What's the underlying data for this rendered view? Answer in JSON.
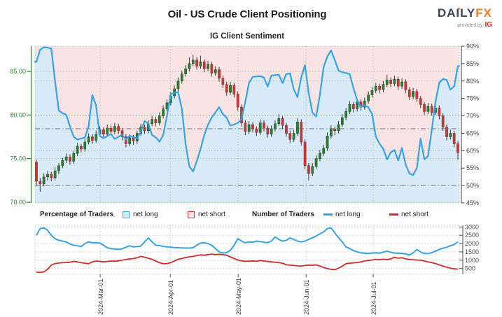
{
  "header": {
    "title": "Oil - US Crude Client Positioning",
    "subtitle": "IG Client Sentiment",
    "logo": {
      "brand_primary": "DAILY",
      "brand_accent": "FX",
      "tagline": "provided by",
      "provider": "IG"
    }
  },
  "legend": {
    "pct_title": "Percentage of Traders",
    "pct_net_long": "net long",
    "pct_net_short": "net short",
    "count_title": "Number of Traders",
    "count_net_long": "net long",
    "count_net_short": "net short"
  },
  "colors": {
    "candle_up": "#2f7d33",
    "candle_up_edge": "#1d4d20",
    "candle_down": "#c13b3b",
    "candle_down_edge": "#8e2626",
    "wick": "#3a3a3a",
    "sentiment_line": "#35a3e6",
    "area_above_line": "#f9e3e3",
    "area_below_line": "#d9eaf8",
    "grid_green": "#a8cda8",
    "grid_gray": "#c2cac2",
    "dash_dot": "#8c8c8c",
    "axis_green": "#2e7d32",
    "axis_dark": "#3c3c3c",
    "count_axis": "#4a4a4a",
    "net_long_count": "#35a3e6",
    "net_short_count": "#cf2b2b"
  },
  "chart_data": [
    {
      "type": "candlestick",
      "title": "IG Client Sentiment",
      "legend_position": "below",
      "grid": true,
      "price_axis": {
        "side": "left",
        "tick_labels": [
          "85.00",
          "80.00",
          "75.00",
          "70.00"
        ],
        "ticks": [
          85,
          80,
          75,
          70
        ],
        "range": [
          69.9,
          87.9
        ]
      },
      "pct_axis": {
        "side": "right",
        "tick_labels": [
          "90%",
          "85%",
          "80%",
          "75%",
          "70%",
          "65%",
          "60%",
          "55%",
          "50%",
          "45%"
        ],
        "ticks": [
          90,
          85,
          80,
          75,
          70,
          65,
          60,
          55,
          50,
          45
        ],
        "range": [
          45,
          90
        ]
      },
      "x_axis": {
        "tick_labels": [
          "2024-Mar-01",
          "2024-Apr-01",
          "2024-May-01",
          "2024-Jun-01",
          "2024-Jul-01"
        ],
        "tick_positions": [
          17.1,
          35.9,
          54.1,
          72.3,
          90.3
        ]
      },
      "reference_lines_pct": [
        66.3,
        50
      ],
      "gridlines_price": [
        85,
        80,
        75,
        70
      ],
      "gridlines_pct": [
        80,
        70,
        60
      ],
      "candles_ohlc": [
        [
          74.6,
          74.9,
          71.9,
          72.4
        ],
        [
          72.4,
          72.8,
          71.2,
          72.1
        ],
        [
          72.1,
          73.3,
          71.8,
          72.9
        ],
        [
          72.9,
          73.6,
          72.5,
          73.2
        ],
        [
          73.2,
          73.5,
          72.4,
          72.8
        ],
        [
          72.8,
          74.0,
          72.5,
          73.6
        ],
        [
          73.6,
          74.5,
          73.2,
          74.2
        ],
        [
          74.2,
          75.1,
          73.9,
          74.8
        ],
        [
          74.8,
          75.6,
          74.5,
          75.2
        ],
        [
          75.2,
          75.5,
          74.3,
          74.7
        ],
        [
          74.7,
          75.9,
          74.4,
          75.6
        ],
        [
          75.6,
          76.8,
          75.3,
          76.4
        ],
        [
          76.4,
          76.7,
          75.7,
          76.1
        ],
        [
          76.1,
          77.3,
          75.8,
          76.9
        ],
        [
          76.9,
          77.9,
          76.6,
          77.5
        ],
        [
          77.5,
          77.8,
          76.7,
          77.1
        ],
        [
          77.1,
          78.2,
          76.8,
          77.8
        ],
        [
          77.8,
          78.7,
          77.5,
          78.3
        ],
        [
          78.3,
          78.6,
          77.4,
          77.8
        ],
        [
          77.8,
          78.9,
          77.5,
          78.5
        ],
        [
          78.5,
          78.8,
          77.7,
          78.1
        ],
        [
          78.1,
          79.1,
          77.8,
          78.7
        ],
        [
          78.7,
          79.0,
          77.8,
          78.2
        ],
        [
          78.2,
          78.5,
          77.1,
          77.5
        ],
        [
          77.5,
          77.8,
          76.3,
          76.7
        ],
        [
          76.7,
          77.8,
          76.4,
          77.4
        ],
        [
          77.4,
          77.7,
          76.6,
          77.0
        ],
        [
          77.0,
          78.2,
          76.7,
          77.9
        ],
        [
          77.9,
          79.0,
          77.6,
          78.6
        ],
        [
          78.6,
          78.9,
          77.8,
          78.2
        ],
        [
          78.2,
          79.4,
          77.9,
          79.0
        ],
        [
          79.0,
          79.9,
          78.7,
          79.5
        ],
        [
          79.5,
          79.8,
          78.7,
          79.1
        ],
        [
          79.1,
          80.3,
          78.8,
          79.9
        ],
        [
          79.9,
          81.1,
          79.6,
          80.7
        ],
        [
          80.7,
          81.8,
          80.4,
          81.4
        ],
        [
          81.4,
          82.6,
          81.1,
          82.2
        ],
        [
          82.2,
          83.4,
          81.9,
          83.0
        ],
        [
          83.0,
          84.3,
          82.7,
          83.9
        ],
        [
          83.9,
          85.1,
          83.6,
          84.7
        ],
        [
          84.7,
          85.7,
          84.4,
          85.3
        ],
        [
          85.3,
          86.6,
          85.0,
          85.9
        ],
        [
          85.9,
          86.9,
          85.6,
          86.3
        ],
        [
          86.3,
          86.6,
          85.2,
          85.6
        ],
        [
          85.6,
          86.8,
          85.3,
          86.1
        ],
        [
          86.1,
          86.4,
          84.9,
          85.3
        ],
        [
          85.3,
          86.2,
          85.0,
          85.8
        ],
        [
          85.8,
          86.1,
          84.4,
          84.8
        ],
        [
          84.8,
          85.6,
          84.5,
          85.2
        ],
        [
          85.2,
          85.5,
          83.8,
          84.2
        ],
        [
          84.2,
          84.5,
          83.1,
          83.5
        ],
        [
          83.5,
          83.8,
          82.2,
          82.6
        ],
        [
          82.6,
          83.8,
          82.3,
          83.4
        ],
        [
          83.4,
          83.7,
          82.0,
          82.4
        ],
        [
          82.4,
          82.7,
          80.5,
          80.9
        ],
        [
          80.9,
          81.2,
          78.7,
          79.1
        ],
        [
          79.1,
          79.4,
          77.7,
          78.1
        ],
        [
          78.1,
          79.3,
          77.8,
          78.9
        ],
        [
          78.9,
          79.2,
          78.0,
          78.4
        ],
        [
          78.4,
          78.7,
          77.6,
          78.0
        ],
        [
          78.0,
          79.5,
          77.7,
          79.1
        ],
        [
          79.1,
          79.4,
          78.1,
          78.5
        ],
        [
          78.5,
          78.8,
          77.4,
          77.8
        ],
        [
          77.8,
          78.8,
          77.5,
          78.4
        ],
        [
          78.4,
          79.4,
          78.1,
          79.0
        ],
        [
          79.0,
          80.1,
          78.7,
          79.6
        ],
        [
          79.6,
          79.9,
          78.4,
          78.8
        ],
        [
          78.8,
          79.1,
          77.5,
          77.9
        ],
        [
          77.9,
          78.2,
          76.8,
          77.2
        ],
        [
          77.2,
          78.3,
          76.9,
          77.9
        ],
        [
          77.9,
          79.6,
          77.6,
          79.2
        ],
        [
          79.2,
          79.5,
          76.5,
          76.9
        ],
        [
          76.9,
          77.2,
          73.8,
          74.2
        ],
        [
          74.2,
          74.5,
          72.5,
          73.3
        ],
        [
          73.3,
          74.5,
          73.0,
          74.1
        ],
        [
          74.1,
          75.4,
          73.8,
          75.0
        ],
        [
          75.0,
          76.0,
          74.7,
          75.6
        ],
        [
          75.6,
          76.6,
          75.3,
          76.2
        ],
        [
          76.2,
          78.0,
          75.9,
          77.6
        ],
        [
          77.6,
          78.8,
          77.3,
          78.4
        ],
        [
          78.4,
          78.7,
          77.7,
          78.2
        ],
        [
          78.2,
          79.3,
          77.9,
          78.9
        ],
        [
          78.9,
          80.1,
          78.6,
          79.7
        ],
        [
          79.7,
          80.8,
          79.4,
          80.4
        ],
        [
          80.4,
          81.6,
          80.1,
          81.2
        ],
        [
          81.2,
          81.5,
          80.3,
          80.7
        ],
        [
          80.7,
          81.9,
          80.4,
          81.5
        ],
        [
          81.5,
          81.8,
          80.5,
          80.9
        ],
        [
          80.9,
          82.0,
          80.6,
          81.6
        ],
        [
          81.6,
          82.7,
          81.3,
          82.3
        ],
        [
          82.3,
          83.2,
          82.0,
          82.8
        ],
        [
          82.8,
          83.7,
          82.5,
          83.3
        ],
        [
          83.3,
          83.6,
          82.5,
          82.9
        ],
        [
          82.9,
          83.9,
          82.6,
          83.5
        ],
        [
          83.5,
          84.6,
          83.2,
          84.0
        ],
        [
          84.0,
          84.3,
          83.2,
          83.6
        ],
        [
          83.6,
          84.5,
          83.3,
          84.1
        ],
        [
          84.1,
          84.4,
          82.9,
          83.3
        ],
        [
          83.3,
          84.2,
          83.0,
          83.8
        ],
        [
          83.8,
          84.1,
          82.5,
          82.9
        ],
        [
          82.9,
          83.2,
          81.7,
          82.1
        ],
        [
          82.1,
          83.1,
          81.8,
          82.7
        ],
        [
          82.7,
          83.0,
          81.5,
          81.9
        ],
        [
          81.9,
          82.2,
          80.8,
          81.2
        ],
        [
          81.2,
          81.5,
          80.0,
          80.4
        ],
        [
          80.4,
          81.4,
          80.1,
          81.0
        ],
        [
          81.0,
          81.3,
          79.9,
          80.3
        ],
        [
          80.3,
          81.2,
          80.0,
          80.8
        ],
        [
          80.8,
          81.1,
          79.5,
          79.9
        ],
        [
          79.9,
          80.2,
          78.2,
          78.6
        ],
        [
          78.6,
          78.9,
          77.1,
          77.5
        ],
        [
          77.5,
          78.3,
          77.2,
          77.9
        ],
        [
          77.9,
          78.2,
          76.3,
          76.7
        ],
        [
          76.7,
          77.0,
          74.9,
          75.7
        ]
      ],
      "sentiment_pct": [
        85.5,
        89.0,
        89.7,
        89.6,
        89.3,
        80.0,
        71.5,
        70.8,
        70.3,
        67.0,
        64.0,
        63.2,
        63.5,
        63.8,
        67.0,
        76.0,
        73.0,
        64.2,
        63.6,
        64.2,
        64.8,
        63.4,
        64.0,
        64.6,
        63.2,
        64.3,
        63.9,
        63.5,
        65.5,
        68.5,
        67.8,
        64.5,
        63.8,
        62.6,
        64.5,
        70.0,
        76.3,
        76.6,
        76.8,
        72.0,
        62.0,
        55.5,
        54.0,
        57.0,
        60.5,
        64.5,
        67.5,
        69.5,
        71.0,
        72.5,
        70.5,
        69.5,
        67.2,
        67.5,
        68.0,
        69.0,
        74.0,
        79.5,
        81.2,
        81.3,
        81.4,
        81.0,
        78.4,
        81.6,
        81.7,
        81.8,
        79.4,
        82.0,
        82.2,
        77.6,
        75.4,
        81.0,
        84.6,
        76.5,
        71.0,
        69.8,
        76.0,
        84.0,
        87.0,
        88.8,
        86.0,
        83.0,
        82.5,
        82.3,
        82.0,
        78.0,
        74.5,
        72.5,
        73.0,
        72.5,
        70.5,
        64.0,
        62.0,
        60.5,
        57.5,
        59.5,
        60.2,
        57.2,
        60.8,
        56.0,
        53.5,
        53.0,
        55.0,
        63.5,
        57.5,
        58.5,
        66.0,
        74.0,
        79.5,
        80.6,
        80.3,
        77.5,
        78.5,
        84.3
      ]
    },
    {
      "type": "line",
      "count_axis": {
        "side": "right",
        "tick_labels": [
          "3000",
          "2500",
          "2000",
          "1500",
          "1000",
          "500"
        ],
        "ticks": [
          3000,
          2500,
          2000,
          1500,
          1000,
          500
        ],
        "range": [
          150,
          3100
        ]
      },
      "gridlines_count": [
        3000,
        2500,
        2000,
        1500,
        1000,
        500
      ],
      "series": [
        {
          "name": "net long",
          "values": [
            2500,
            2900,
            2950,
            2800,
            2500,
            2300,
            2200,
            2150,
            2100,
            1980,
            1900,
            1870,
            1820,
            2000,
            2100,
            2050,
            2050,
            2030,
            1900,
            1750,
            1700,
            1680,
            1650,
            1690,
            1780,
            1870,
            1800,
            1820,
            1850,
            2100,
            2340,
            2100,
            1900,
            1880,
            1830,
            1800,
            1780,
            1760,
            1750,
            1740,
            1730,
            1730,
            1750,
            1900,
            2030,
            2050,
            2000,
            1900,
            1700,
            1500,
            1430,
            1450,
            1600,
            1900,
            2300,
            2150,
            2050,
            2100,
            2080,
            2150,
            2120,
            2080,
            2060,
            2150,
            2400,
            2250,
            2150,
            2200,
            2340,
            2250,
            2150,
            2100,
            2150,
            2250,
            2350,
            2450,
            2580,
            2700,
            2900,
            2950,
            2650,
            2350,
            2100,
            1800,
            1700,
            1580,
            1500,
            1450,
            1420,
            1400,
            1430,
            1450,
            1420,
            1480,
            1550,
            1480,
            1430,
            1420,
            1400,
            1380,
            1310,
            1450,
            1640,
            1500,
            1400,
            1400,
            1450,
            1550,
            1650,
            1720,
            1780,
            1870,
            1950,
            2100
          ]
        },
        {
          "name": "net short",
          "values": [
            280,
            260,
            300,
            450,
            700,
            800,
            830,
            850,
            860,
            880,
            930,
            900,
            850,
            820,
            790,
            900,
            950,
            930,
            900,
            920,
            950,
            940,
            960,
            1000,
            1040,
            1080,
            1100,
            1150,
            1230,
            1180,
            1120,
            1050,
            950,
            850,
            790,
            800,
            850,
            950,
            1050,
            1100,
            1160,
            1200,
            1230,
            1280,
            1320,
            1300,
            1340,
            1370,
            1340,
            1360,
            1330,
            1300,
            1200,
            1100,
            1010,
            960,
            940,
            940,
            960,
            930,
            980,
            950,
            920,
            900,
            880,
            850,
            820,
            720,
            700,
            680,
            660,
            650,
            680,
            700,
            690,
            720,
            650,
            560,
            500,
            450,
            430,
            520,
            640,
            790,
            820,
            840,
            860,
            900,
            950,
            990,
            1010,
            1050,
            1030,
            1060,
            1040,
            1080,
            1180,
            1120,
            1150,
            1080,
            1050,
            1030,
            1010,
            1000,
            950,
            900,
            860,
            800,
            720,
            650,
            580,
            520,
            480,
            460
          ]
        }
      ]
    }
  ]
}
